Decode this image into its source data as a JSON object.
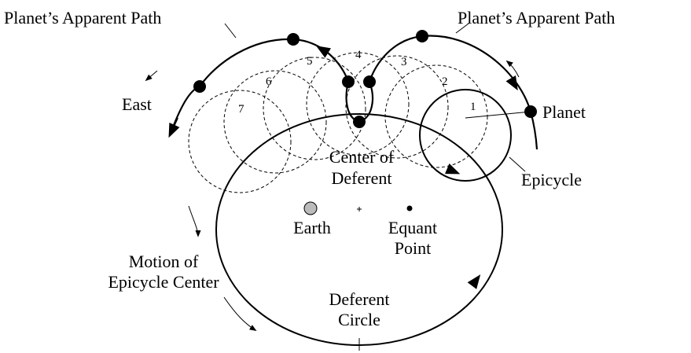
{
  "labels": {
    "apparent_path_left": "Planet’s Apparent Path",
    "apparent_path_right": "Planet’s Apparent Path",
    "east": "East",
    "planet": "Planet",
    "epicycle": "Epicycle",
    "center_of_deferent": [
      "Center of",
      "Deferent"
    ],
    "earth": "Earth",
    "equant_point": [
      "Equant",
      "Point"
    ],
    "motion_of_epicycle_center": [
      "Motion of",
      "Epicycle Center"
    ],
    "deferent_circle": [
      "Deferent",
      "Circle"
    ]
  },
  "positions": [
    "1",
    "2",
    "3",
    "4",
    "5",
    "6",
    "7"
  ]
}
